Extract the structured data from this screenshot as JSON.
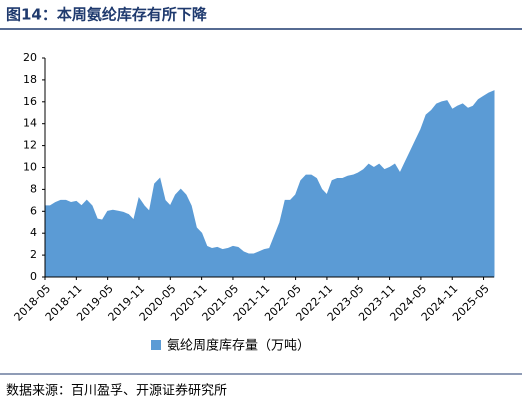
{
  "chart_data": {
    "type": "area",
    "title": "图14：本周氨纶库存有所下降",
    "legend_label": "氨纶周度库存量（万吨）",
    "source": "数据来源：百川盈孚、开源证券研究所",
    "color": "#5b9bd5",
    "categories": [
      "2018-05",
      null,
      null,
      null,
      null,
      null,
      "2018-11",
      null,
      null,
      null,
      null,
      null,
      "2019-05",
      null,
      null,
      null,
      null,
      null,
      "2019-11",
      null,
      null,
      null,
      null,
      null,
      "2020-05",
      null,
      null,
      null,
      null,
      null,
      "2020-11",
      null,
      null,
      null,
      null,
      null,
      "2021-05",
      null,
      null,
      null,
      null,
      null,
      "2021-11",
      null,
      null,
      null,
      null,
      null,
      "2022-05",
      null,
      null,
      null,
      null,
      null,
      "2022-11",
      null,
      null,
      null,
      null,
      null,
      "2023-05",
      null,
      null,
      null,
      null,
      null,
      "2023-11",
      null,
      null,
      null,
      null,
      null,
      "2024-05",
      null,
      null,
      null,
      null,
      null,
      "2024-11",
      null,
      null,
      null,
      null,
      null,
      "2025-05",
      null,
      null
    ],
    "values": [
      6.5,
      6.5,
      6.8,
      7.0,
      7.0,
      6.8,
      6.9,
      6.5,
      7.0,
      6.5,
      5.3,
      5.2,
      6.0,
      6.1,
      6.0,
      5.9,
      5.7,
      5.2,
      7.2,
      6.5,
      6.0,
      8.5,
      9.0,
      7.0,
      6.5,
      7.5,
      8.0,
      7.5,
      6.5,
      4.5,
      4.0,
      2.8,
      2.6,
      2.7,
      2.5,
      2.6,
      2.8,
      2.7,
      2.3,
      2.1,
      2.1,
      2.3,
      2.5,
      2.6,
      3.8,
      5.0,
      7.0,
      7.0,
      7.5,
      8.8,
      9.3,
      9.3,
      9.0,
      8.0,
      7.5,
      8.8,
      9.0,
      9.0,
      9.2,
      9.3,
      9.5,
      9.8,
      10.3,
      10.0,
      10.3,
      9.8,
      10.0,
      10.3,
      9.5,
      10.5,
      11.5,
      12.5,
      13.5,
      14.8,
      15.2,
      15.8,
      16.0,
      16.1,
      15.3,
      15.6,
      15.8,
      15.4,
      15.6,
      16.2,
      16.5,
      16.8,
      17.0
    ],
    "ylim": [
      0,
      20
    ],
    "yticks": [
      0,
      2,
      4,
      6,
      8,
      10,
      12,
      14,
      16,
      18,
      20
    ],
    "grid": false
  }
}
